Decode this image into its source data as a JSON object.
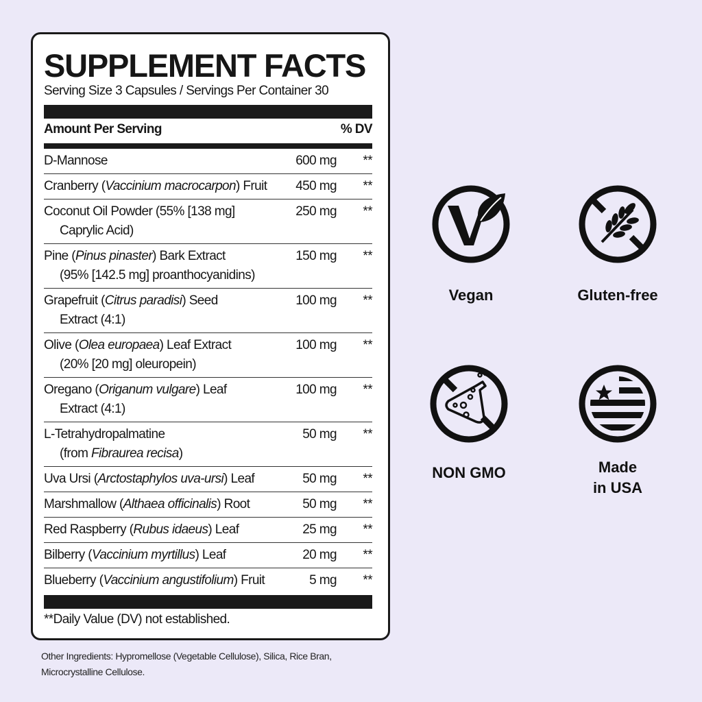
{
  "label": {
    "title": "SUPPLEMENT FACTS",
    "serving": "Serving Size 3 Capsules / Servings Per Container 30",
    "amount_header": "Amount Per Serving",
    "dv_header": "% DV",
    "rows": [
      {
        "name": [
          [
            "D-Mannose",
            ""
          ]
        ],
        "amount": "600 mg",
        "dv": "**"
      },
      {
        "name": [
          [
            "Cranberry (",
            ""
          ],
          [
            "Vaccinium macrocarpon",
            "i"
          ],
          [
            ") Fruit",
            ""
          ]
        ],
        "amount": "450 mg",
        "dv": "**"
      },
      {
        "name": [
          [
            "Coconut Oil Powder (55% [138 mg]",
            ""
          ]
        ],
        "line2": [
          [
            "Caprylic Acid)",
            ""
          ]
        ],
        "amount": "250 mg",
        "dv": "**"
      },
      {
        "name": [
          [
            "Pine (",
            ""
          ],
          [
            "Pinus pinaster",
            "i"
          ],
          [
            ") Bark Extract",
            ""
          ]
        ],
        "line2": [
          [
            "(95% [142.5 mg] proanthocyanidins)",
            ""
          ]
        ],
        "amount": "150 mg",
        "dv": "**"
      },
      {
        "name": [
          [
            "Grapefruit (",
            ""
          ],
          [
            "Citrus paradisi",
            "i"
          ],
          [
            ") Seed",
            ""
          ]
        ],
        "line2": [
          [
            "Extract (4:1)",
            ""
          ]
        ],
        "amount": "100 mg",
        "dv": "**"
      },
      {
        "name": [
          [
            "Olive (",
            ""
          ],
          [
            "Olea europaea",
            "i"
          ],
          [
            ") Leaf Extract",
            ""
          ]
        ],
        "line2": [
          [
            "(20% [20 mg] oleuropein)",
            ""
          ]
        ],
        "amount": "100 mg",
        "dv": "**"
      },
      {
        "name": [
          [
            "Oregano (",
            ""
          ],
          [
            "Origanum vulgare",
            "i"
          ],
          [
            ") Leaf",
            ""
          ]
        ],
        "line2": [
          [
            "Extract (4:1)",
            ""
          ]
        ],
        "amount": "100 mg",
        "dv": "**"
      },
      {
        "name": [
          [
            "L-Tetrahydropalmatine",
            ""
          ]
        ],
        "line2": [
          [
            "(from ",
            ""
          ],
          [
            "Fibraurea recisa",
            "i"
          ],
          [
            ")",
            ""
          ]
        ],
        "amount": "50 mg",
        "dv": "**"
      },
      {
        "name": [
          [
            "Uva Ursi (",
            ""
          ],
          [
            "Arctostaphylos uva-ursi",
            "i"
          ],
          [
            ") Leaf",
            ""
          ]
        ],
        "amount": "50 mg",
        "dv": "**"
      },
      {
        "name": [
          [
            "Marshmallow (",
            ""
          ],
          [
            "Althaea officinalis",
            "i"
          ],
          [
            ") Root",
            ""
          ]
        ],
        "amount": "50 mg",
        "dv": "**"
      },
      {
        "name": [
          [
            "Red Raspberry (",
            ""
          ],
          [
            "Rubus idaeus",
            "i"
          ],
          [
            ") Leaf",
            ""
          ]
        ],
        "amount": "25 mg",
        "dv": "**"
      },
      {
        "name": [
          [
            "Bilberry (",
            ""
          ],
          [
            "Vaccinium myrtillus",
            "i"
          ],
          [
            ") Leaf",
            ""
          ]
        ],
        "amount": "20 mg",
        "dv": "**"
      },
      {
        "name": [
          [
            "Blueberry (",
            ""
          ],
          [
            "Vaccinium angustifolium",
            "i"
          ],
          [
            ") Fruit",
            ""
          ]
        ],
        "amount": "5 mg",
        "dv": "**"
      }
    ],
    "footnote": "**Daily Value (DV) not established."
  },
  "other_ingredients": "Other Ingredients: Hypromellose (Vegetable Cellulose), Silica, Rice Bran, Microcrystalline Cellulose.",
  "badges": [
    {
      "icon": "vegan-leaf-icon",
      "label": "Vegan"
    },
    {
      "icon": "gluten-free-wheat-icon",
      "label": "Gluten-free"
    },
    {
      "icon": "non-gmo-flask-icon",
      "label": "NON GMO"
    },
    {
      "icon": "usa-flag-icon",
      "label_line1": "Made",
      "label_line2": "in USA"
    }
  ],
  "colors": {
    "background": "#ece9f8",
    "ink": "#161616",
    "panel": "#ffffff"
  }
}
